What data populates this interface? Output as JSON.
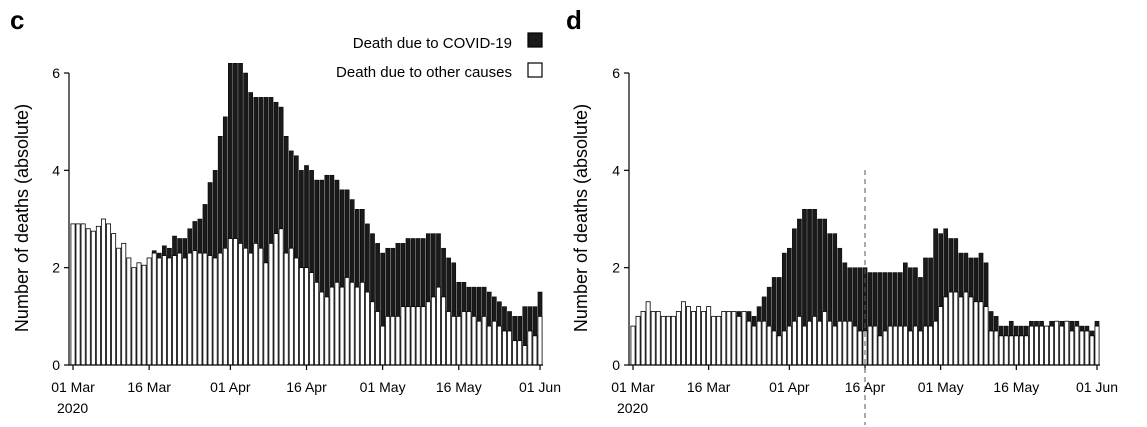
{
  "legend": {
    "covid_label": "Death due to COVID-19",
    "other_label": "Death due to other causes",
    "covid_color": "#1a1a1a",
    "other_color": "#ffffff"
  },
  "chart_data": [
    {
      "panel": "c",
      "type": "bar",
      "stacked": true,
      "ylabel": "Number of deaths (absolute)",
      "ylim": [
        0,
        6
      ],
      "yticks": [
        0,
        2,
        4,
        6
      ],
      "xtick_labels": [
        "01 Mar",
        "16 Mar",
        "01 Apr",
        "16 Apr",
        "01 May",
        "16 May",
        "01 Jun"
      ],
      "xtick_day_index": [
        0,
        15,
        31,
        46,
        61,
        76,
        92
      ],
      "year_label": "2020",
      "x": "daily, 01 Mar 2020 to 01 Jun 2020",
      "series": [
        {
          "name": "Death due to other causes",
          "values": [
            2.9,
            2.9,
            2.9,
            2.8,
            2.75,
            2.85,
            3.0,
            2.9,
            2.7,
            2.4,
            2.5,
            2.2,
            2.0,
            2.1,
            2.05,
            2.2,
            2.3,
            2.2,
            2.25,
            2.2,
            2.25,
            2.3,
            2.2,
            2.3,
            2.35,
            2.3,
            2.3,
            2.25,
            2.2,
            2.3,
            2.4,
            2.6,
            2.6,
            2.5,
            2.4,
            2.3,
            2.5,
            2.4,
            2.1,
            2.5,
            2.7,
            2.8,
            2.3,
            2.4,
            2.2,
            2.0,
            2.0,
            1.9,
            1.7,
            1.5,
            1.4,
            1.6,
            1.7,
            1.6,
            1.8,
            1.7,
            1.6,
            1.7,
            1.5,
            1.3,
            1.1,
            0.8,
            1.0,
            1.0,
            1.0,
            1.2,
            1.2,
            1.2,
            1.2,
            1.2,
            1.3,
            1.4,
            1.6,
            1.4,
            1.1,
            1.0,
            1.0,
            1.1,
            1.1,
            1.0,
            0.9,
            1.0,
            0.8,
            0.9,
            0.8,
            0.7,
            0.7,
            0.5,
            0.5,
            0.4,
            0.7,
            0.6,
            1.0
          ]
        },
        {
          "name": "Death due to COVID-19",
          "values": [
            0,
            0,
            0,
            0,
            0,
            0,
            0,
            0,
            0,
            0,
            0,
            0,
            0,
            0,
            0,
            0,
            0.05,
            0.1,
            0.2,
            0.2,
            0.4,
            0.3,
            0.4,
            0.5,
            0.6,
            0.7,
            1.0,
            1.5,
            1.8,
            2.4,
            2.7,
            3.6,
            3.6,
            3.7,
            3.6,
            3.3,
            3.0,
            3.1,
            3.4,
            3.0,
            2.7,
            2.5,
            2.4,
            2.0,
            2.1,
            2.0,
            2.1,
            2.1,
            2.1,
            2.3,
            2.5,
            2.3,
            2.1,
            2.0,
            1.8,
            1.7,
            1.6,
            1.5,
            1.4,
            1.4,
            1.4,
            1.5,
            1.4,
            1.4,
            1.5,
            1.3,
            1.4,
            1.4,
            1.4,
            1.4,
            1.4,
            1.3,
            1.1,
            1.0,
            1.1,
            1.1,
            0.7,
            0.6,
            0.5,
            0.6,
            0.7,
            0.6,
            0.7,
            0.5,
            0.5,
            0.5,
            0.4,
            0.5,
            0.5,
            0.8,
            0.5,
            0.6,
            0.5
          ]
        }
      ]
    },
    {
      "panel": "d",
      "type": "bar",
      "stacked": true,
      "ylabel": "Number of deaths (absolute)",
      "ylim": [
        0,
        6
      ],
      "yticks": [
        0,
        2,
        4,
        6
      ],
      "xtick_labels": [
        "01 Mar",
        "16 Mar",
        "01 Apr",
        "16 Apr",
        "01 May",
        "16 May",
        "01 Jun"
      ],
      "xtick_day_index": [
        0,
        15,
        31,
        46,
        61,
        76,
        92
      ],
      "year_label": "2020",
      "x": "daily, 01 Mar 2020 to 01 Jun 2020",
      "reference_line_day_index": 46,
      "series": [
        {
          "name": "Death due to other causes",
          "values": [
            0.8,
            1.0,
            1.1,
            1.3,
            1.1,
            1.1,
            1.0,
            1.0,
            1.0,
            1.1,
            1.3,
            1.2,
            1.1,
            1.2,
            1.1,
            1.2,
            1.0,
            1.0,
            1.1,
            1.1,
            1.1,
            1.0,
            1.1,
            0.9,
            0.8,
            0.9,
            0.9,
            0.8,
            0.7,
            0.6,
            0.7,
            0.8,
            0.9,
            1.0,
            0.8,
            0.9,
            1.0,
            0.9,
            1.1,
            0.9,
            0.8,
            0.9,
            0.9,
            0.9,
            0.8,
            0.7,
            0.7,
            0.8,
            0.8,
            0.6,
            0.7,
            0.8,
            0.8,
            0.8,
            0.8,
            0.7,
            0.8,
            0.7,
            0.8,
            0.8,
            0.9,
            1.2,
            1.4,
            1.5,
            1.5,
            1.4,
            1.5,
            1.4,
            1.3,
            1.3,
            1.2,
            0.7,
            0.7,
            0.6,
            0.6,
            0.6,
            0.6,
            0.6,
            0.6,
            0.8,
            0.8,
            0.8,
            0.8,
            0.8,
            0.9,
            0.8,
            0.9,
            0.7,
            0.8,
            0.7,
            0.7,
            0.6,
            0.8
          ]
        },
        {
          "name": "Death due to COVID-19",
          "values": [
            0,
            0,
            0,
            0,
            0,
            0,
            0,
            0,
            0,
            0,
            0,
            0,
            0,
            0,
            0,
            0,
            0,
            0,
            0,
            0,
            0,
            0.1,
            0,
            0.2,
            0.2,
            0.3,
            0.5,
            0.8,
            1.1,
            1.2,
            1.6,
            1.6,
            1.9,
            2.0,
            2.4,
            2.3,
            2.2,
            2.1,
            1.9,
            1.8,
            1.9,
            1.5,
            1.2,
            1.1,
            1.2,
            1.3,
            1.3,
            1.1,
            1.1,
            1.3,
            1.2,
            1.1,
            1.1,
            1.1,
            1.3,
            1.3,
            1.2,
            1.1,
            1.4,
            1.4,
            1.9,
            1.5,
            1.4,
            1.1,
            1.1,
            0.9,
            0.8,
            0.8,
            0.9,
            1.0,
            0.9,
            0.4,
            0.3,
            0.2,
            0.2,
            0.3,
            0.2,
            0.2,
            0.2,
            0.1,
            0.1,
            0.1,
            0,
            0.1,
            0,
            0.1,
            0,
            0.2,
            0.1,
            0.1,
            0.1,
            0.1,
            0.1
          ]
        }
      ]
    }
  ]
}
